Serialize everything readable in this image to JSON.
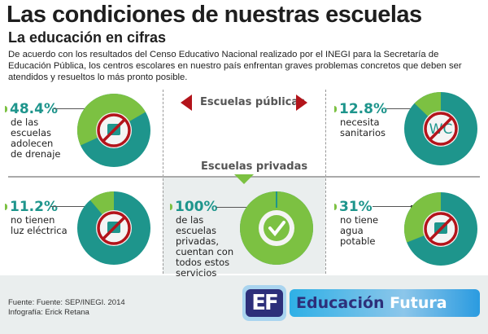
{
  "title": "Las condiciones de nuestras escuelas",
  "subtitle": "La educación en cifras",
  "intro": "De acuerdo con los resultados del Censo Educativo Nacional realizado por el INEGI para la Secretaría de Educación Pública, los centros escolares en nuestro país enfrentan graves problemas concretos que deben ser atendidos y resueltos lo más pronto posible.",
  "sections": {
    "public": "Escuelas públicas",
    "private": "Escuelas privadas"
  },
  "stats": [
    {
      "pct": "48.4%",
      "value": 48.4,
      "desc": [
        "de las",
        "escuelas",
        "adolecen",
        "de drenaje"
      ],
      "icon": "drain-pipe-icon"
    },
    {
      "pct": "12.8%",
      "value": 12.8,
      "desc": [
        "necesita",
        "sanitarios"
      ],
      "icon": "wc-icon",
      "icon_text": "WC"
    },
    {
      "pct": "11.2%",
      "value": 11.2,
      "desc": [
        "no tienen",
        "luz eléctrica"
      ],
      "icon": "light-bulb-icon"
    },
    {
      "pct": "100%",
      "value": 100,
      "desc": [
        "de las",
        "escuelas",
        "privadas,",
        "cuentan con",
        "todos estos",
        "servicios"
      ],
      "icon": "check-icon"
    },
    {
      "pct": "31%",
      "value": 31,
      "desc": [
        "no tiene",
        "agua",
        "potable"
      ],
      "icon": "faucet-icon"
    }
  ],
  "footer": {
    "source": "Fuente: Fuente: SEP/INEGI. 2014",
    "credit": "Infografía: Erick Retana"
  },
  "logo": {
    "mark": "EF",
    "name1": "Educación",
    "name2": "Futura"
  },
  "colors": {
    "green": "#7cc142",
    "teal": "#1e958c",
    "red": "#b3141b",
    "gray": "#eaeeee"
  }
}
